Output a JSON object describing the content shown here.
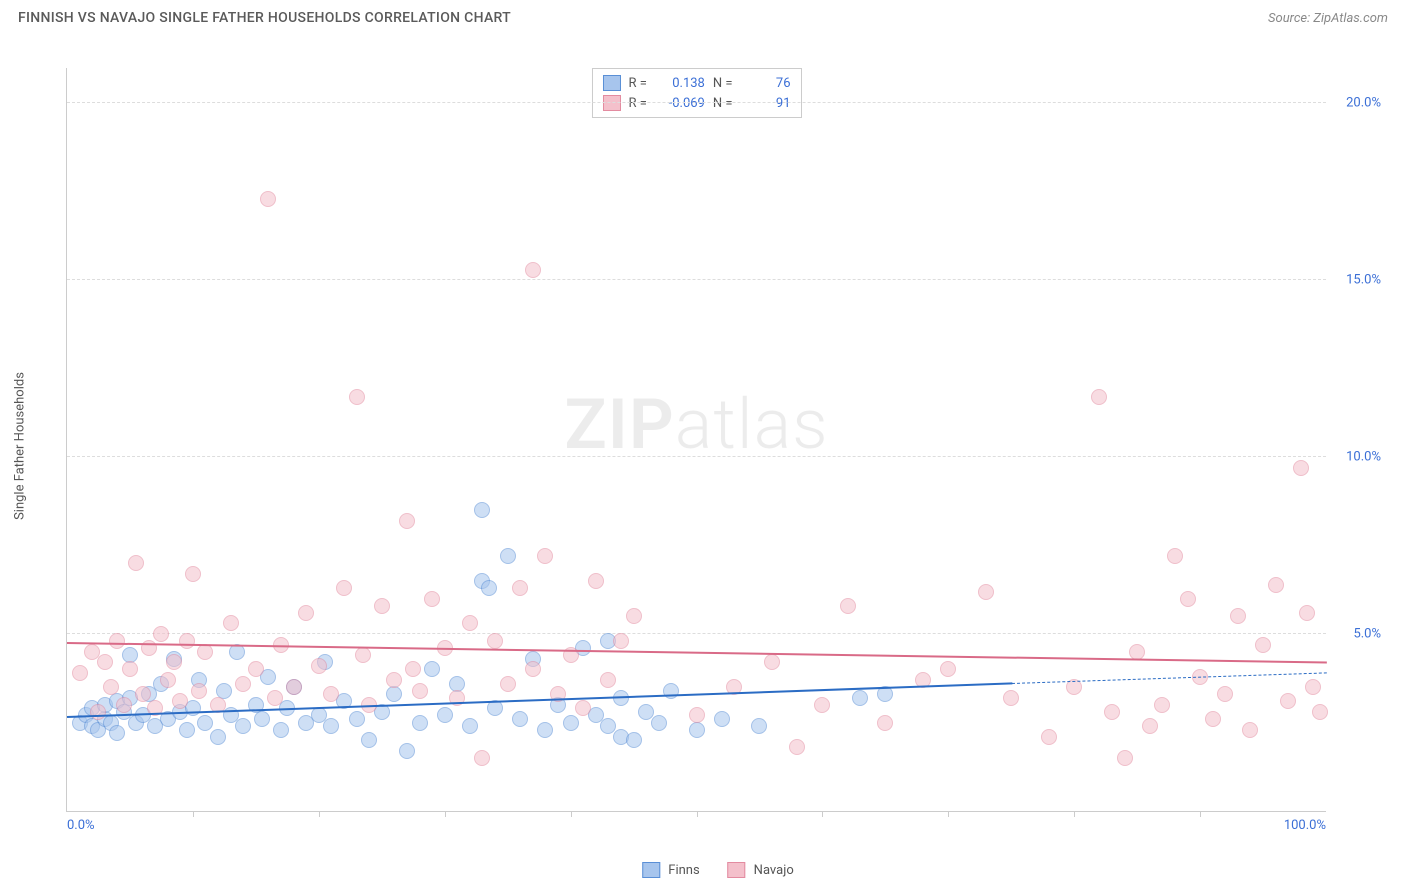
{
  "header": {
    "title": "FINNISH VS NAVAJO SINGLE FATHER HOUSEHOLDS CORRELATION CHART",
    "source": "Source: ZipAtlas.com"
  },
  "watermark": {
    "part1": "ZIP",
    "part2": "atlas"
  },
  "chart": {
    "type": "scatter",
    "ylabel": "Single Father Households",
    "xlim": [
      0,
      100
    ],
    "ylim": [
      0,
      21
    ],
    "xtick_labels": [
      {
        "pos": 0,
        "label": "0.0%"
      },
      {
        "pos": 100,
        "label": "100.0%"
      }
    ],
    "xtick_marks": [
      10,
      20,
      30,
      40,
      50,
      60,
      70,
      80,
      90
    ],
    "ytick_labels": [
      {
        "pos": 5,
        "label": "5.0%"
      },
      {
        "pos": 10,
        "label": "10.0%"
      },
      {
        "pos": 15,
        "label": "15.0%"
      },
      {
        "pos": 20,
        "label": "20.0%"
      }
    ],
    "grid_color": "#dddddd",
    "background_color": "#ffffff",
    "marker_radius": 8,
    "marker_opacity": 0.55,
    "marker_border_opacity": 0.9,
    "series": [
      {
        "name": "Finns",
        "color_fill": "#a7c5ed",
        "color_border": "#5a8fd6",
        "color_line": "#2b6cc4",
        "R": "0.138",
        "N": "76",
        "trend": {
          "x1": 0,
          "y1": 2.7,
          "x2": 75,
          "y2": 3.65,
          "x2_dash": 100,
          "y2_dash": 3.95
        },
        "points": [
          [
            1,
            2.5
          ],
          [
            1.5,
            2.7
          ],
          [
            2,
            2.4
          ],
          [
            2,
            2.9
          ],
          [
            2.5,
            2.3
          ],
          [
            3,
            2.6
          ],
          [
            3,
            3.0
          ],
          [
            3.5,
            2.5
          ],
          [
            4,
            2.2
          ],
          [
            4,
            3.1
          ],
          [
            4.5,
            2.8
          ],
          [
            5,
            4.4
          ],
          [
            5,
            3.2
          ],
          [
            5.5,
            2.5
          ],
          [
            6,
            2.7
          ],
          [
            6.5,
            3.3
          ],
          [
            7,
            2.4
          ],
          [
            7.5,
            3.6
          ],
          [
            8,
            2.6
          ],
          [
            8.5,
            4.3
          ],
          [
            9,
            2.8
          ],
          [
            9.5,
            2.3
          ],
          [
            10,
            2.9
          ],
          [
            10.5,
            3.7
          ],
          [
            11,
            2.5
          ],
          [
            12,
            2.1
          ],
          [
            12.5,
            3.4
          ],
          [
            13,
            2.7
          ],
          [
            13.5,
            4.5
          ],
          [
            14,
            2.4
          ],
          [
            15,
            3.0
          ],
          [
            15.5,
            2.6
          ],
          [
            16,
            3.8
          ],
          [
            17,
            2.3
          ],
          [
            17.5,
            2.9
          ],
          [
            18,
            3.5
          ],
          [
            19,
            2.5
          ],
          [
            20,
            2.7
          ],
          [
            20.5,
            4.2
          ],
          [
            21,
            2.4
          ],
          [
            22,
            3.1
          ],
          [
            23,
            2.6
          ],
          [
            24,
            2.0
          ],
          [
            25,
            2.8
          ],
          [
            26,
            3.3
          ],
          [
            27,
            1.7
          ],
          [
            28,
            2.5
          ],
          [
            29,
            4.0
          ],
          [
            30,
            2.7
          ],
          [
            31,
            3.6
          ],
          [
            32,
            2.4
          ],
          [
            33,
            8.5
          ],
          [
            33,
            6.5
          ],
          [
            33.5,
            6.3
          ],
          [
            34,
            2.9
          ],
          [
            35,
            7.2
          ],
          [
            36,
            2.6
          ],
          [
            37,
            4.3
          ],
          [
            38,
            2.3
          ],
          [
            39,
            3.0
          ],
          [
            40,
            2.5
          ],
          [
            41,
            4.6
          ],
          [
            42,
            2.7
          ],
          [
            43,
            2.4
          ],
          [
            43,
            4.8
          ],
          [
            44,
            3.2
          ],
          [
            44,
            2.1
          ],
          [
            45,
            2.0
          ],
          [
            46,
            2.8
          ],
          [
            47,
            2.5
          ],
          [
            48,
            3.4
          ],
          [
            50,
            2.3
          ],
          [
            52,
            2.6
          ],
          [
            55,
            2.4
          ],
          [
            63,
            3.2
          ],
          [
            65,
            3.3
          ]
        ]
      },
      {
        "name": "Navajo",
        "color_fill": "#f4c0cb",
        "color_border": "#e38ba0",
        "color_line": "#d96a87",
        "R": "-0.069",
        "N": "91",
        "trend": {
          "x1": 0,
          "y1": 4.8,
          "x2": 100,
          "y2": 4.25
        },
        "points": [
          [
            1,
            3.9
          ],
          [
            2,
            4.5
          ],
          [
            2.5,
            2.8
          ],
          [
            3,
            4.2
          ],
          [
            3.5,
            3.5
          ],
          [
            4,
            4.8
          ],
          [
            4.5,
            3.0
          ],
          [
            5,
            4.0
          ],
          [
            5.5,
            7.0
          ],
          [
            6,
            3.3
          ],
          [
            6.5,
            4.6
          ],
          [
            7,
            2.9
          ],
          [
            7.5,
            5.0
          ],
          [
            8,
            3.7
          ],
          [
            8.5,
            4.2
          ],
          [
            9,
            3.1
          ],
          [
            9.5,
            4.8
          ],
          [
            10,
            6.7
          ],
          [
            10.5,
            3.4
          ],
          [
            11,
            4.5
          ],
          [
            12,
            3.0
          ],
          [
            13,
            5.3
          ],
          [
            14,
            3.6
          ],
          [
            15,
            4.0
          ],
          [
            16,
            17.3
          ],
          [
            16.5,
            3.2
          ],
          [
            17,
            4.7
          ],
          [
            18,
            3.5
          ],
          [
            19,
            5.6
          ],
          [
            20,
            4.1
          ],
          [
            21,
            3.3
          ],
          [
            22,
            6.3
          ],
          [
            23,
            11.7
          ],
          [
            23.5,
            4.4
          ],
          [
            24,
            3.0
          ],
          [
            25,
            5.8
          ],
          [
            26,
            3.7
          ],
          [
            27,
            8.2
          ],
          [
            27.5,
            4.0
          ],
          [
            28,
            3.4
          ],
          [
            29,
            6.0
          ],
          [
            30,
            4.6
          ],
          [
            31,
            3.2
          ],
          [
            32,
            5.3
          ],
          [
            33,
            1.5
          ],
          [
            34,
            4.8
          ],
          [
            35,
            3.6
          ],
          [
            36,
            6.3
          ],
          [
            37,
            4.0
          ],
          [
            37,
            15.3
          ],
          [
            38,
            7.2
          ],
          [
            39,
            3.3
          ],
          [
            40,
            4.4
          ],
          [
            41,
            2.9
          ],
          [
            42,
            6.5
          ],
          [
            43,
            3.7
          ],
          [
            44,
            4.8
          ],
          [
            45,
            5.5
          ],
          [
            50,
            2.7
          ],
          [
            53,
            3.5
          ],
          [
            56,
            4.2
          ],
          [
            58,
            1.8
          ],
          [
            60,
            3.0
          ],
          [
            62,
            5.8
          ],
          [
            65,
            2.5
          ],
          [
            68,
            3.7
          ],
          [
            70,
            4.0
          ],
          [
            73,
            6.2
          ],
          [
            75,
            3.2
          ],
          [
            78,
            2.1
          ],
          [
            80,
            3.5
          ],
          [
            82,
            11.7
          ],
          [
            83,
            2.8
          ],
          [
            84,
            1.5
          ],
          [
            85,
            4.5
          ],
          [
            86,
            2.4
          ],
          [
            87,
            3.0
          ],
          [
            88,
            7.2
          ],
          [
            89,
            6.0
          ],
          [
            90,
            3.8
          ],
          [
            91,
            2.6
          ],
          [
            92,
            3.3
          ],
          [
            93,
            5.5
          ],
          [
            94,
            2.3
          ],
          [
            95,
            4.7
          ],
          [
            96,
            6.4
          ],
          [
            97,
            3.1
          ],
          [
            98,
            9.7
          ],
          [
            98.5,
            5.6
          ],
          [
            99,
            3.5
          ],
          [
            99.5,
            2.8
          ]
        ]
      }
    ]
  },
  "legend": {
    "items": [
      {
        "label": "Finns"
      },
      {
        "label": "Navajo"
      }
    ]
  }
}
